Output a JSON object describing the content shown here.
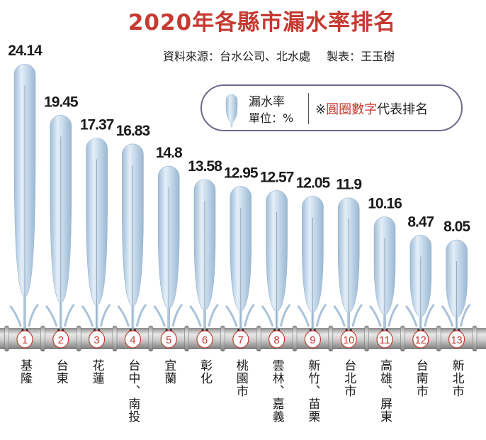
{
  "title": "2020年各縣市漏水率排名",
  "source": {
    "data_source": "資料來源：台水公司、北水處",
    "maker": "製表：王玉樹"
  },
  "legend": {
    "label": "漏水率",
    "unit": "單位：%",
    "note_prefix": "※",
    "note_red": "圓圈數字",
    "note_rest": "代表排名"
  },
  "colors": {
    "title": "#c63a32",
    "drop": "#b8d0e6",
    "pipe": "#a9a9a9"
  },
  "chart_data": {
    "type": "bar",
    "title": "2020年各縣市漏水率排名",
    "ylabel": "漏水率 (%)",
    "categories": [
      "基隆",
      "台東",
      "花蓮",
      "台中、南投",
      "宜蘭",
      "彰化",
      "桃園市",
      "雲林、嘉義",
      "新竹、苗栗",
      "台北市",
      "高雄、屏東",
      "台南市",
      "新北市"
    ],
    "ranks": [
      "1",
      "2",
      "3",
      "4",
      "5",
      "6",
      "7",
      "8",
      "9",
      "10",
      "11",
      "12",
      "13"
    ],
    "values": [
      24.14,
      19.45,
      17.37,
      16.83,
      14.8,
      13.58,
      12.95,
      12.57,
      12.05,
      11.9,
      10.16,
      8.47,
      8.05
    ],
    "value_labels": [
      "24.14",
      "19.45",
      "17.37",
      "16.83",
      "14.8",
      "13.58",
      "12.95",
      "12.57",
      "12.05",
      "11.9",
      "10.16",
      "8.47",
      "8.05"
    ],
    "ylim": [
      0,
      25
    ]
  }
}
